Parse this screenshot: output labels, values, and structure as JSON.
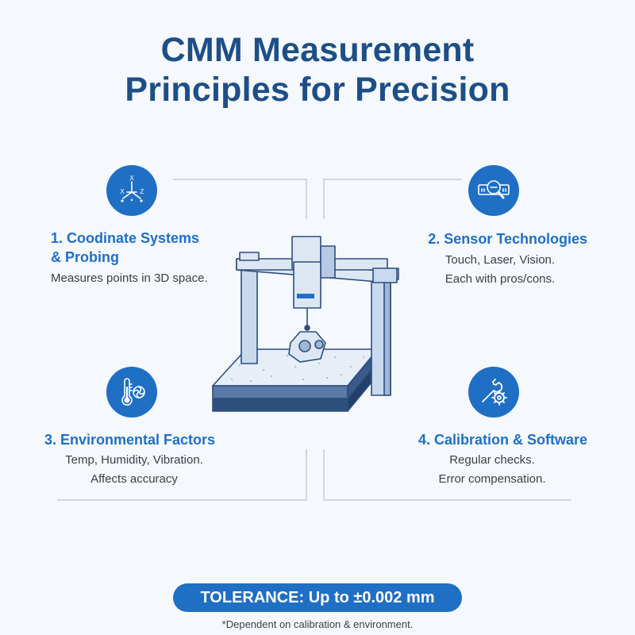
{
  "title": {
    "line1": "CMM Measurement",
    "line2": "Principles for Precision"
  },
  "cards": [
    {
      "title_line1": "1. Coodinate Systems",
      "title_line2": "& Probing",
      "text_line1": "Measures points in 3D space.",
      "text_line2": "",
      "icon": "coordinate-axes-icon"
    },
    {
      "title_line1": "2. Sensor Technologies",
      "title_line2": "",
      "text_line1": "Touch, Laser, Vision.",
      "text_line2": "Each with pros/cons.",
      "icon": "magnifier-scan-icon"
    },
    {
      "title_line1": "3. Environmental Factors",
      "title_line2": "",
      "text_line1": "Temp, Humidity, Vibration.",
      "text_line2": "Affects accuracy",
      "icon": "thermometer-icon"
    },
    {
      "title_line1": "4. Calibration & Software",
      "title_line2": "",
      "text_line1": "Regular checks.",
      "text_line2": "Error compensation.",
      "icon": "wrench-gear-icon"
    }
  ],
  "axis_labels": {
    "x": "X",
    "y": "X",
    "z": "Z"
  },
  "tolerance": "TOLERANCE: Up to ±0.002 mm",
  "footnote": "*Dependent on calibration & environment.",
  "colors": {
    "accent": "#1f6fc4",
    "title": "#1d4f86",
    "background": "#f5f8fc",
    "machine": "#c9d9ee",
    "machine_dark": "#2e4e7e"
  }
}
